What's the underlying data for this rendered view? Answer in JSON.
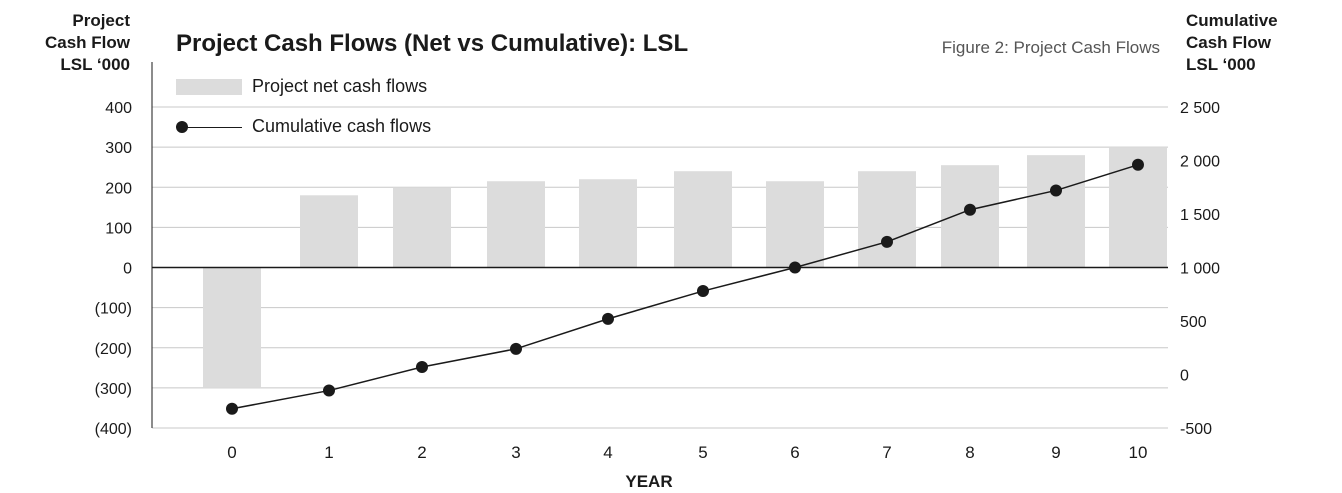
{
  "chart_data": {
    "type": "bar",
    "title": "Project Cash Flows (Net vs Cumulative): LSL",
    "subtitle": "Figure 2: Project Cash Flows",
    "y_left_label": [
      "Project",
      "Cash Flow",
      "LSL ‘000"
    ],
    "y_right_label": [
      "Cumulative",
      "Cash Flow",
      "LSL ‘000"
    ],
    "xlabel": "YEAR",
    "categories": [
      "0",
      "1",
      "2",
      "3",
      "4",
      "5",
      "6",
      "7",
      "8",
      "9",
      "10"
    ],
    "y_left_ticks": [
      {
        "value": 400,
        "label": "400"
      },
      {
        "value": 300,
        "label": "300"
      },
      {
        "value": 200,
        "label": "200"
      },
      {
        "value": 100,
        "label": "100"
      },
      {
        "value": 0,
        "label": "0"
      },
      {
        "value": -100,
        "label": "(100)"
      },
      {
        "value": -200,
        "label": "(200)"
      },
      {
        "value": -300,
        "label": "(300)"
      },
      {
        "value": -400,
        "label": "(400)"
      }
    ],
    "y_right_ticks": [
      {
        "value": 2500,
        "label": "2 500"
      },
      {
        "value": 2000,
        "label": "2 000"
      },
      {
        "value": 1500,
        "label": "1 500"
      },
      {
        "value": 1000,
        "label": "1 000"
      },
      {
        "value": 500,
        "label": "500"
      },
      {
        "value": 0,
        "label": "0"
      },
      {
        "value": -500,
        "label": "-500"
      }
    ],
    "ylim_left": [
      -400,
      400
    ],
    "ylim_right": [
      -500,
      2500
    ],
    "grid": true,
    "legend_position": "top-left",
    "series": [
      {
        "name": "Project net cash flows",
        "type": "bar",
        "axis": "left",
        "color": "#dcdcdc",
        "values": [
          -300,
          180,
          200,
          215,
          220,
          240,
          215,
          240,
          255,
          280,
          300
        ]
      },
      {
        "name": "Cumulative cash flows",
        "type": "line",
        "axis": "right",
        "color": "#1a1a1a",
        "values": [
          -320,
          -150,
          70,
          240,
          520,
          780,
          1000,
          1240,
          1540,
          1720,
          1960
        ]
      }
    ]
  }
}
